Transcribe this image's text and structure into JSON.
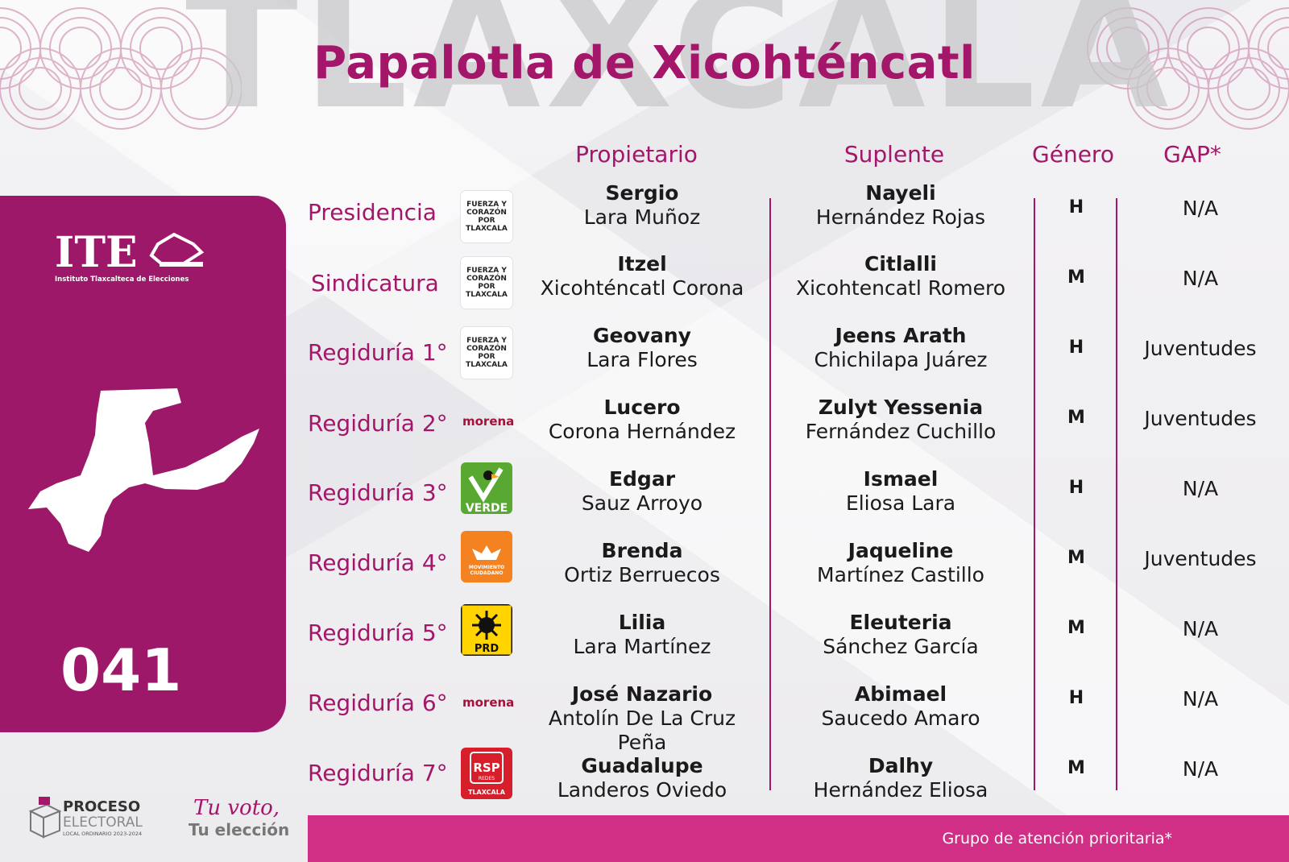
{
  "watermark": "TLAXCALA",
  "title": "Papalotla de Xicohténcatl",
  "headers": {
    "propietario": "Propietario",
    "suplente": "Suplente",
    "genero": "Género",
    "gap": "GAP*"
  },
  "sidebar": {
    "logo_text": "ITE",
    "logo_subtitle": "Instituto Tlaxcalteca de Elecciones",
    "district_number": "041"
  },
  "rows": [
    {
      "cargo": "Presidencia",
      "party": "Fuerza y Corazón por Tlaxcala",
      "prop_first": "Sergio",
      "prop_last": "Lara Muñoz",
      "sup_first": "Nayeli",
      "sup_last": "Hernández Rojas",
      "genero": "H",
      "gap": "N/A"
    },
    {
      "cargo": "Sindicatura",
      "party": "Fuerza y Corazón por Tlaxcala",
      "prop_first": "Itzel",
      "prop_last": "Xicohténcatl Corona",
      "sup_first": "Citlalli",
      "sup_last": "Xicohtencatl Romero",
      "genero": "M",
      "gap": "N/A"
    },
    {
      "cargo": "Regiduría 1°",
      "party": "Fuerza y Corazón por Tlaxcala",
      "prop_first": "Geovany",
      "prop_last": "Lara Flores",
      "sup_first": "Jeens Arath",
      "sup_last": "Chichilapa Juárez",
      "genero": "H",
      "gap": "Juventudes"
    },
    {
      "cargo": "Regiduría 2°",
      "party": "morena",
      "prop_first": "Lucero",
      "prop_last": "Corona Hernández",
      "sup_first": "Zulyt Yessenia",
      "sup_last": "Fernández Cuchillo",
      "genero": "M",
      "gap": "Juventudes"
    },
    {
      "cargo": "Regiduría 3°",
      "party": "VERDE",
      "prop_first": "Edgar",
      "prop_last": "Sauz Arroyo",
      "sup_first": "Ismael",
      "sup_last": "Eliosa Lara",
      "genero": "H",
      "gap": "N/A"
    },
    {
      "cargo": "Regiduría 4°",
      "party": "MOVIMIENTO CIUDADANO",
      "prop_first": "Brenda",
      "prop_last": "Ortiz Berruecos",
      "sup_first": "Jaqueline",
      "sup_last": "Martínez Castillo",
      "genero": "M",
      "gap": "Juventudes"
    },
    {
      "cargo": "Regiduría 5°",
      "party": "PRD",
      "prop_first": "Lilia",
      "prop_last": "Lara Martínez",
      "sup_first": "Eleuteria",
      "sup_last": "Sánchez García",
      "genero": "M",
      "gap": "N/A"
    },
    {
      "cargo": "Regiduría 6°",
      "party": "morena",
      "prop_first": "José Nazario",
      "prop_last": "Antolín De La Cruz Peña",
      "sup_first": "Abimael",
      "sup_last": "Saucedo Amaro",
      "genero": "H",
      "gap": "N/A"
    },
    {
      "cargo": "Regiduría 7°",
      "party": "RSP TLAXCALA",
      "prop_first": "Guadalupe",
      "prop_last": "Landeros Oviedo",
      "sup_first": "Dalhy",
      "sup_last": "Hernández Eliosa",
      "genero": "M",
      "gap": "N/A"
    }
  ],
  "party_logos": {
    "fuerza": "FUERZA Y CORAZÓN POR TLAXCALA",
    "morena": "morena",
    "verde": "VERDE",
    "mc": "MOVIMIENTO CIUDADANO",
    "prd": "PRD",
    "rsp": "RSP",
    "rsp_sub": "REDES",
    "rsp_state": "TLAXCALA"
  },
  "footer": {
    "note": "Grupo de atención prioritaria*",
    "proceso_title": "PROCESO",
    "proceso_sub": "ELECTORAL",
    "proceso_detail": "LOCAL ORDINARIO 2023-2024",
    "slogan_1": "Tu voto,",
    "slogan_2": "Tu elección"
  },
  "colors": {
    "primary": "#a3166a",
    "sidebar": "#9d1868",
    "footer_bar": "#d12e86"
  }
}
